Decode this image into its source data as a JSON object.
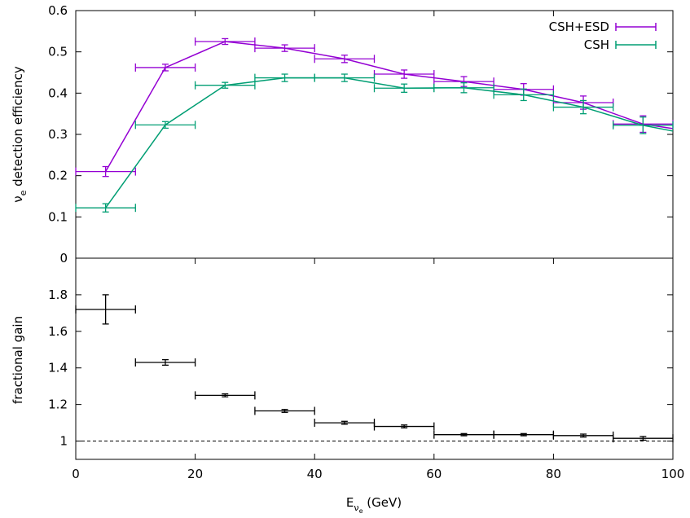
{
  "chart_data": [
    {
      "type": "line",
      "ylabel": {
        "main": "ν",
        "sub": "e",
        "rest": " detection efficiency"
      },
      "xlim": [
        0,
        100
      ],
      "ylim": [
        0,
        0.6
      ],
      "xticks": [
        "0",
        "20",
        "40",
        "60",
        "80",
        "100"
      ],
      "yticks": [
        "0",
        "0.1",
        "0.2",
        "0.3",
        "0.4",
        "0.5",
        "0.6"
      ],
      "legend_position": "top-right",
      "grid": false,
      "series": [
        {
          "name": "CSH+ESD",
          "color": "#9400d3",
          "points": [
            {
              "x": 5,
              "xerr": 5,
              "y": 0.21,
              "yerr": 0.012
            },
            {
              "x": 15,
              "xerr": 5,
              "y": 0.462,
              "yerr": 0.008
            },
            {
              "x": 25,
              "xerr": 5,
              "y": 0.525,
              "yerr": 0.007
            },
            {
              "x": 35,
              "xerr": 5,
              "y": 0.509,
              "yerr": 0.008
            },
            {
              "x": 45,
              "xerr": 5,
              "y": 0.483,
              "yerr": 0.009
            },
            {
              "x": 55,
              "xerr": 5,
              "y": 0.446,
              "yerr": 0.01
            },
            {
              "x": 65,
              "xerr": 5,
              "y": 0.428,
              "yerr": 0.012
            },
            {
              "x": 75,
              "xerr": 5,
              "y": 0.409,
              "yerr": 0.014
            },
            {
              "x": 85,
              "xerr": 5,
              "y": 0.377,
              "yerr": 0.016
            },
            {
              "x": 95,
              "xerr": 5,
              "y": 0.325,
              "yerr": 0.02
            }
          ],
          "line_end": {
            "x": 100,
            "y": 0.314
          }
        },
        {
          "name": "CSH",
          "color": "#009e73",
          "points": [
            {
              "x": 5,
              "xerr": 5,
              "y": 0.122,
              "yerr": 0.01
            },
            {
              "x": 15,
              "xerr": 5,
              "y": 0.323,
              "yerr": 0.008
            },
            {
              "x": 25,
              "xerr": 5,
              "y": 0.419,
              "yerr": 0.007
            },
            {
              "x": 35,
              "xerr": 5,
              "y": 0.437,
              "yerr": 0.009
            },
            {
              "x": 45,
              "xerr": 5,
              "y": 0.437,
              "yerr": 0.009
            },
            {
              "x": 55,
              "xerr": 5,
              "y": 0.412,
              "yerr": 0.01
            },
            {
              "x": 65,
              "xerr": 5,
              "y": 0.413,
              "yerr": 0.012
            },
            {
              "x": 75,
              "xerr": 5,
              "y": 0.396,
              "yerr": 0.014
            },
            {
              "x": 85,
              "xerr": 5,
              "y": 0.366,
              "yerr": 0.016
            },
            {
              "x": 95,
              "xerr": 5,
              "y": 0.322,
              "yerr": 0.02
            }
          ],
          "line_end": {
            "x": 100,
            "y": 0.308
          }
        }
      ]
    },
    {
      "type": "scatter",
      "ylabel": "fractional gain",
      "xlabel": {
        "main": "E",
        "sub": "ν",
        "subsub": "e",
        "rest": " (GeV)"
      },
      "xlim": [
        0,
        100
      ],
      "ylim": [
        0.9,
        2.0
      ],
      "xticks": [
        "0",
        "20",
        "40",
        "60",
        "80",
        "100"
      ],
      "yticks": [
        "1",
        "1.2",
        "1.4",
        "1.6",
        "1.8"
      ],
      "grid": false,
      "reference_line": {
        "y": 1.0,
        "style": "dashed"
      },
      "series": [
        {
          "color": "#000000",
          "points": [
            {
              "x": 5,
              "xerr": 5,
              "y": 1.72,
              "yerr": 0.08
            },
            {
              "x": 15,
              "xerr": 5,
              "y": 1.43,
              "yerr": 0.015
            },
            {
              "x": 25,
              "xerr": 5,
              "y": 1.25,
              "yerr": 0.008
            },
            {
              "x": 35,
              "xerr": 5,
              "y": 1.165,
              "yerr": 0.008
            },
            {
              "x": 45,
              "xerr": 5,
              "y": 1.1,
              "yerr": 0.008
            },
            {
              "x": 55,
              "xerr": 5,
              "y": 1.08,
              "yerr": 0.008
            },
            {
              "x": 65,
              "xerr": 5,
              "y": 1.035,
              "yerr": 0.006
            },
            {
              "x": 75,
              "xerr": 5,
              "y": 1.035,
              "yerr": 0.006
            },
            {
              "x": 85,
              "xerr": 5,
              "y": 1.03,
              "yerr": 0.008
            },
            {
              "x": 95,
              "xerr": 5,
              "y": 1.015,
              "yerr": 0.01
            }
          ]
        }
      ]
    }
  ]
}
